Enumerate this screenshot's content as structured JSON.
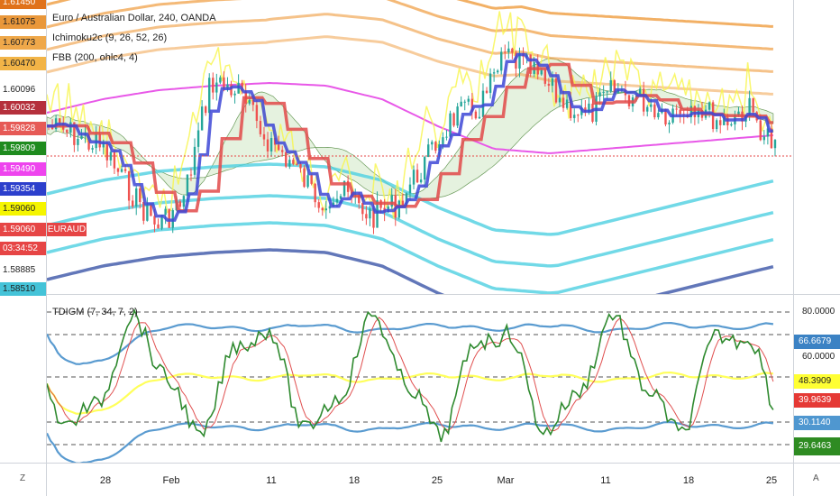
{
  "header": {
    "title": "Euro / Australian Dollar, 240, OANDA",
    "indicator_ichimoku": "Ichimoku2c (9, 26, 52, 26)",
    "indicator_fbb": "FBB (200, ohlc4, 4)",
    "oscillator_label": "TDIGM (7, 34, 7, 2)"
  },
  "left_axis": {
    "tags": [
      {
        "text": "1.61450",
        "bg": "#e0721a",
        "fg": "#ffffff"
      },
      {
        "text": "1.61075",
        "bg": "#e9973a",
        "fg": "#222222"
      },
      {
        "text": "1.60773",
        "bg": "#efa84a",
        "fg": "#222222"
      },
      {
        "text": "1.60470",
        "bg": "#f2b447",
        "fg": "#222222"
      },
      {
        "text": "1.60096",
        "bg": "",
        "fg": "#222222"
      },
      {
        "text": "1.60032",
        "bg": "#b5303c",
        "fg": "#ffffff"
      },
      {
        "text": "1.59828",
        "bg": "#e65a56",
        "fg": "#ffffff"
      },
      {
        "text": "1.59809",
        "bg": "#1e8b1e",
        "fg": "#ffffff"
      },
      {
        "text": "1.59490",
        "bg": "#ee44ee",
        "fg": "#ffffff"
      },
      {
        "text": "1.59354",
        "bg": "#2c3fcc",
        "fg": "#ffffff"
      },
      {
        "text": "1.59060",
        "bg": "#f5f500",
        "fg": "#222222"
      },
      {
        "text": "1.59060",
        "bg": "#e64545",
        "fg": "#ffffff"
      },
      {
        "text": "03:34:52",
        "bg": "#e64545",
        "fg": "#ffffff"
      },
      {
        "text": "1.58885",
        "bg": "",
        "fg": "#222222"
      },
      {
        "text": "1.58510",
        "bg": "#44c3d8",
        "fg": "#222222"
      }
    ],
    "symbol_tag": {
      "text": "EURAUD",
      "bg": "#e64545",
      "fg": "#ffffff"
    }
  },
  "osc_axis": {
    "labels": [
      "80.0000",
      "60.0000"
    ],
    "tags": [
      {
        "text": "66.6679",
        "bg": "#3b82c4",
        "fg": "#ffffff"
      },
      {
        "text": "48.3909",
        "bg": "#ffff33",
        "fg": "#222222"
      },
      {
        "text": "39.9639",
        "bg": "#e53935",
        "fg": "#ffffff"
      },
      {
        "text": "30.1140",
        "bg": "#4f97d0",
        "fg": "#ffffff"
      },
      {
        "text": "29.6463",
        "bg": "#2e8b22",
        "fg": "#ffffff"
      }
    ]
  },
  "x_axis": {
    "labels": [
      "28",
      "Feb",
      "11",
      "18",
      "25",
      "Mar",
      "11",
      "18",
      "25"
    ]
  },
  "corner": {
    "left": "Z",
    "right": "A"
  },
  "colors": {
    "candle_up": "#26a69a",
    "candle_down": "#ef5350",
    "tenkan": "#3d46d6",
    "kijun": "#e24a4a",
    "chikou": "#f7f54a",
    "fbb_basis": "#e858e8",
    "fbb_upper": "#f0a24a",
    "fbb_lower": "#4dd0e1",
    "tdi_price": "#2f8a2f",
    "tdi_signal": "#e05050",
    "tdi_market_base": "#ffff5a",
    "tdi_band": "#5a9bd0"
  }
}
